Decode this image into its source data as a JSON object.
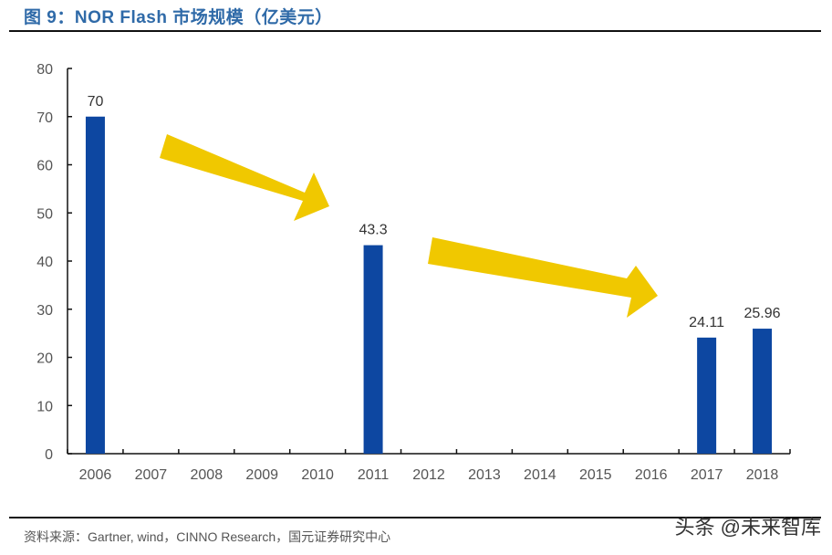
{
  "header": {
    "title": "图 9：NOR Flash 市场规模（亿美元）"
  },
  "footer": {
    "source": "资料来源：Gartner, wind，CINNO Research，国元证券研究中心",
    "watermark": "头条 @未来智库"
  },
  "colors": {
    "bar": "#0d47a1",
    "arrow": "#f0c800",
    "title": "#2f6aa8",
    "axis": "#111111",
    "tick_label": "#555555"
  },
  "chart_data": {
    "type": "bar",
    "title": "NOR Flash 市场规模（亿美元）",
    "xlabel": "",
    "ylabel": "",
    "ylim": [
      0,
      80
    ],
    "yticks": [
      0,
      10,
      20,
      30,
      40,
      50,
      60,
      70,
      80
    ],
    "grid": false,
    "legend": null,
    "categories": [
      "2006",
      "2007",
      "2008",
      "2009",
      "2010",
      "2011",
      "2012",
      "2013",
      "2014",
      "2015",
      "2016",
      "2017",
      "2018"
    ],
    "values": [
      70,
      null,
      null,
      null,
      null,
      43.3,
      null,
      null,
      null,
      null,
      null,
      24.11,
      25.96
    ],
    "data_labels": [
      "70",
      "",
      "",
      "",
      "",
      "43.3",
      "",
      "",
      "",
      "",
      "",
      "24.11",
      "25.96"
    ],
    "annotations": [
      {
        "type": "arrow",
        "from": "2006-2007",
        "to": "2011",
        "direction": "down-right",
        "color": "#f0c800"
      },
      {
        "type": "arrow",
        "from": "2012",
        "to": "2017",
        "direction": "down-right",
        "color": "#f0c800"
      }
    ]
  }
}
